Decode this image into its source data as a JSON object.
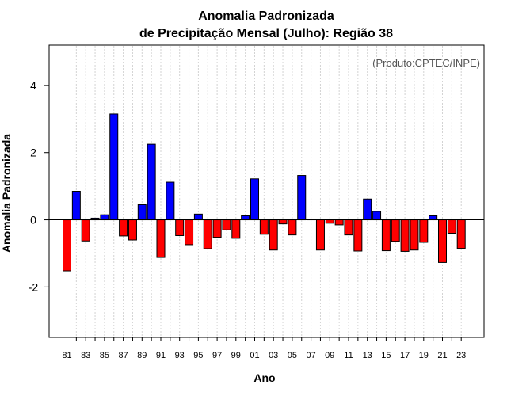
{
  "chart_data": {
    "type": "bar",
    "title_line1": "Anomalia Padronizada",
    "title_line2": "de Precipitação Mensal (Julho): Região 38",
    "xlabel": "Ano",
    "ylabel": "Anomalia Padronizada",
    "credit": "(Produto:CPTEC/INPE)",
    "ylim": [
      -3.5,
      5.2
    ],
    "yticks": [
      -2,
      0,
      2,
      4
    ],
    "ytick_labels": [
      "-2",
      "0",
      "2",
      "4"
    ],
    "categories": [
      "81",
      "82",
      "83",
      "84",
      "85",
      "86",
      "87",
      "88",
      "89",
      "90",
      "91",
      "92",
      "93",
      "94",
      "95",
      "96",
      "97",
      "98",
      "99",
      "00",
      "01",
      "02",
      "03",
      "04",
      "05",
      "06",
      "07",
      "08",
      "09",
      "10",
      "11",
      "12",
      "13",
      "14",
      "15",
      "16",
      "17",
      "18",
      "19",
      "20",
      "21",
      "22",
      "23"
    ],
    "xtick_labels": [
      "81",
      "83",
      "85",
      "87",
      "89",
      "91",
      "93",
      "95",
      "97",
      "99",
      "01",
      "03",
      "05",
      "07",
      "09",
      "11",
      "13",
      "15",
      "17",
      "19",
      "21",
      "23"
    ],
    "values": [
      -1.52,
      0.85,
      -0.63,
      0.05,
      0.15,
      3.15,
      -0.48,
      -0.6,
      0.45,
      2.25,
      -1.12,
      1.12,
      -0.47,
      -0.74,
      0.17,
      -0.86,
      -0.52,
      -0.3,
      -0.55,
      0.12,
      1.22,
      -0.43,
      -0.9,
      -0.12,
      -0.45,
      1.32,
      0.02,
      -0.9,
      -0.1,
      -0.15,
      -0.45,
      -0.93,
      0.62,
      0.25,
      -0.92,
      -0.64,
      -0.94,
      -0.9,
      -0.67,
      0.12,
      -1.27,
      -0.4,
      -0.85
    ],
    "grid": true,
    "colors": {
      "positive": "#0000ff",
      "negative": "#ff0000",
      "grid": "#d3d3d3",
      "zero_line": "#000000"
    }
  }
}
